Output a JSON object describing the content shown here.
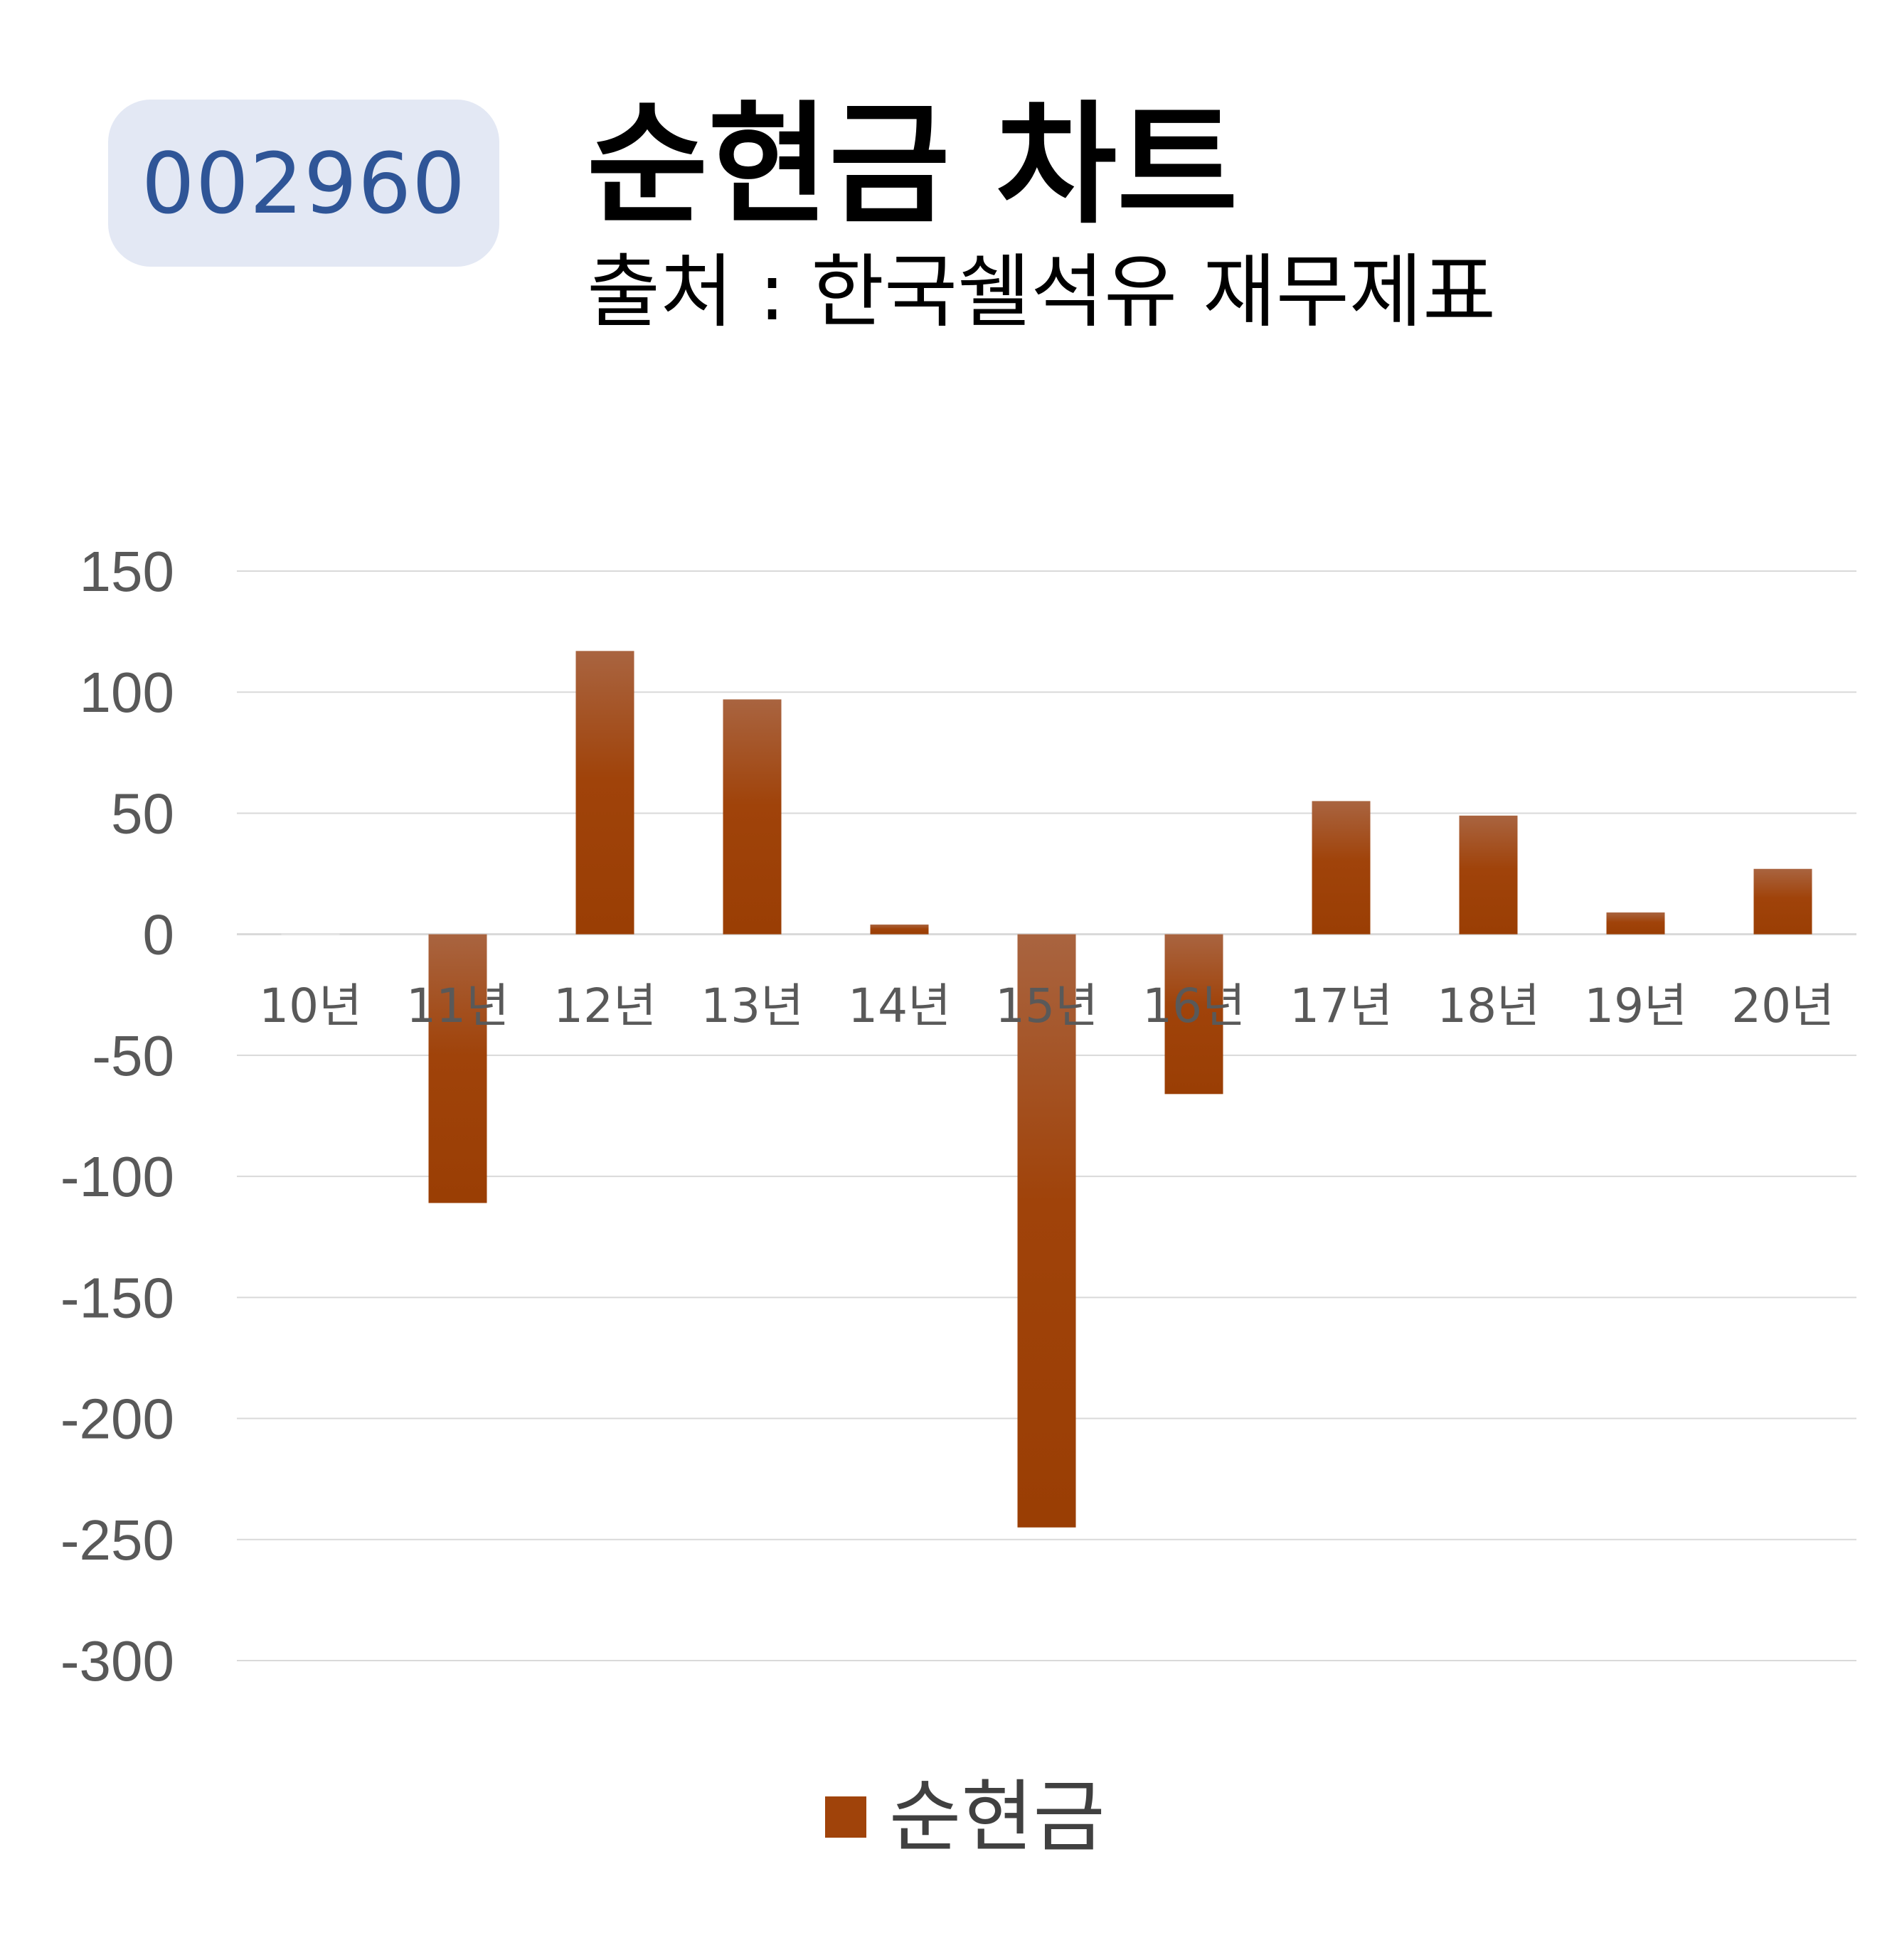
{
  "header": {
    "code": "002960",
    "title": "순현금 차트",
    "subtitle": "출처 : 한국쉘석유 재무제표"
  },
  "colors": {
    "bar": "#a0430a",
    "bar_top": "#a96440",
    "badge_bg": "#e3e8f4",
    "badge_text": "#2f5597",
    "grid": "#d9d9d9",
    "tick_text": "#595959"
  },
  "chart_data": {
    "type": "bar",
    "categories": [
      "10년",
      "11년",
      "12년",
      "13년",
      "14년",
      "15년",
      "16년",
      "17년",
      "18년",
      "19년",
      "20년"
    ],
    "series": [
      {
        "name": "순현금",
        "values": [
          0,
          -111,
          117,
          97,
          4,
          -245,
          -66,
          55,
          49,
          9,
          27
        ]
      }
    ],
    "ylim": [
      -300,
      150
    ],
    "yticks": [
      150,
      100,
      50,
      0,
      -50,
      -100,
      -150,
      -200,
      -250,
      -300
    ],
    "grid": true,
    "legend": "bottom-center"
  }
}
